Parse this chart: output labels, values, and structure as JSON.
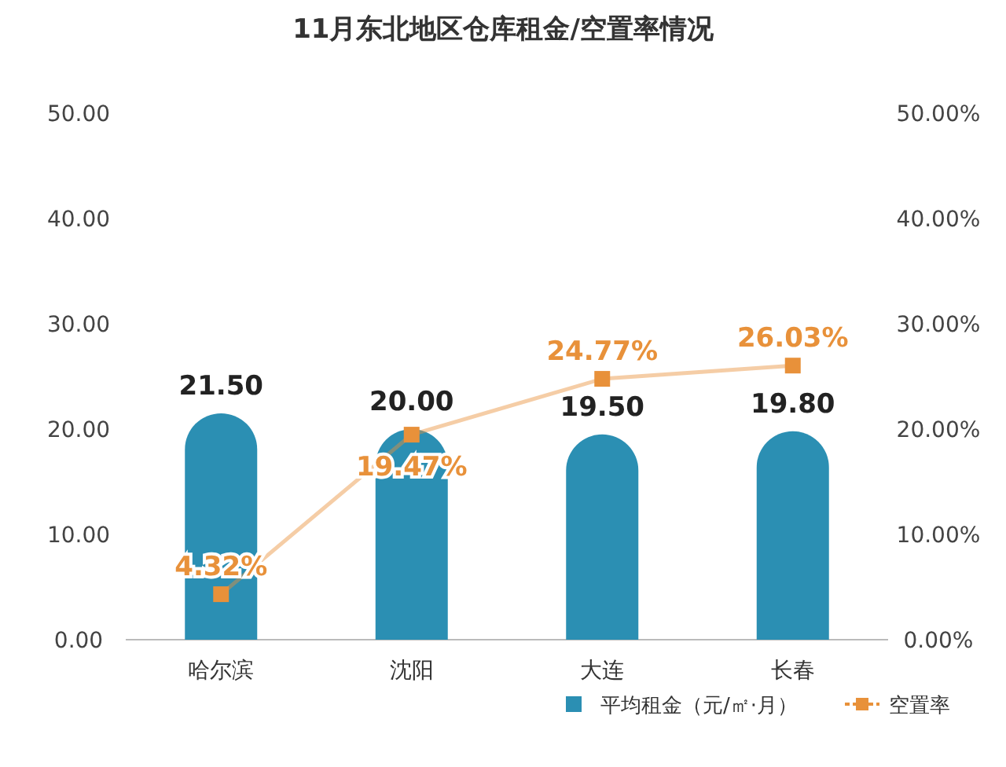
{
  "chart_data": {
    "type": "bar",
    "title": "11月东北地区仓库租金/空置率情况",
    "categories": [
      "哈尔滨",
      "沈阳",
      "大连",
      "长春"
    ],
    "series": [
      {
        "name": "平均租金（元/㎡·月）",
        "color": "#2b8fb3",
        "values": [
          21.5,
          20,
          19.5,
          19.8
        ],
        "value_labels": [
          "21.50",
          "20.00",
          "19.50",
          "19.80"
        ]
      },
      {
        "name": "空置率",
        "type": "line",
        "axis": "y2",
        "color": "#e8913a",
        "marker": "square",
        "values": [
          4.32,
          19.47,
          24.77,
          26.03
        ],
        "value_labels": [
          "4.32%",
          "19.47%",
          "24.77%",
          "26.03%"
        ]
      }
    ],
    "ylim": [
      0,
      50
    ],
    "yticks": [
      {
        "value": 0,
        "label": "0.00"
      },
      {
        "value": 10,
        "label": "10.00"
      },
      {
        "value": 20,
        "label": "20.00"
      },
      {
        "value": 30,
        "label": "30.00"
      },
      {
        "value": 40,
        "label": "40.00"
      },
      {
        "value": 50,
        "label": "50.00"
      }
    ],
    "y2lim": [
      0,
      50
    ],
    "y2ticks": [
      {
        "value": 0,
        "label": "0.00%"
      },
      {
        "value": 10,
        "label": "10.00%"
      },
      {
        "value": 20,
        "label": "20.00%"
      },
      {
        "value": 30,
        "label": "30.00%"
      },
      {
        "value": 40,
        "label": "40.00%"
      },
      {
        "value": 50,
        "label": "50.00%"
      }
    ],
    "legend": "bottom right",
    "grid": false
  }
}
